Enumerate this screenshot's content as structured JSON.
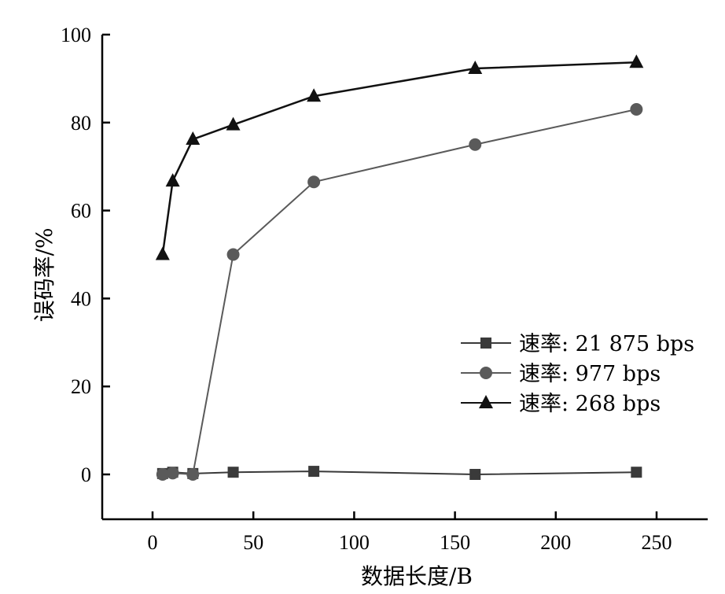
{
  "chart_data": {
    "type": "line",
    "title": "",
    "xlabel": "数据长度/B",
    "ylabel": "误码率/%",
    "xlim": [
      -25,
      275
    ],
    "ylim": [
      -10,
      100
    ],
    "xticks": [
      0,
      50,
      100,
      150,
      200,
      250
    ],
    "yticks": [
      0,
      20,
      40,
      60,
      80,
      100
    ],
    "xtick_labels": [
      "0",
      "50",
      "100",
      "150",
      "200",
      "250"
    ],
    "ytick_labels": [
      "0",
      "20",
      "40",
      "60",
      "80",
      "100"
    ],
    "grid": false,
    "legend_position": "right-middle",
    "x": [
      5,
      10,
      20,
      40,
      80,
      160,
      240
    ],
    "series": [
      {
        "name": "速率: 21 875 bps",
        "marker": "square",
        "color": "#3a3a3a",
        "values": [
          0.2,
          0.5,
          0.2,
          0.5,
          0.7,
          0.0,
          0.5
        ]
      },
      {
        "name": "速率: 977 bps",
        "marker": "circle",
        "color": "#5a5a5a",
        "values": [
          0.0,
          0.3,
          0.0,
          50.0,
          66.5,
          75.0,
          83.0
        ]
      },
      {
        "name": "速率: 268 bps",
        "marker": "triangle",
        "color": "#111111",
        "values": [
          50.0,
          66.7,
          76.2,
          79.5,
          86.0,
          92.3,
          93.7
        ]
      }
    ]
  }
}
